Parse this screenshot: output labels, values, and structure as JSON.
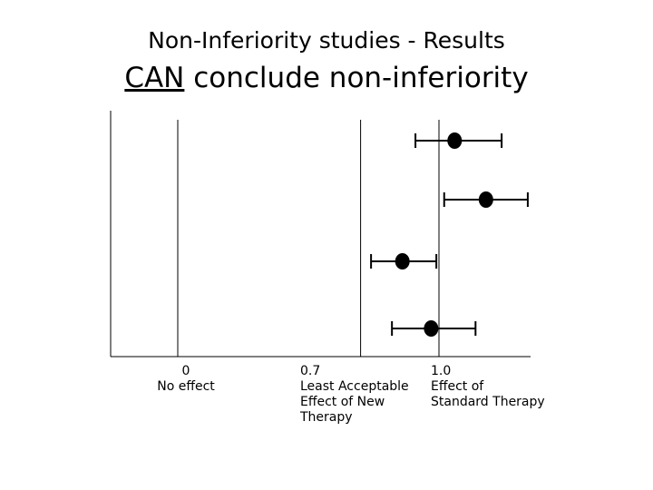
{
  "slide": {
    "title": "Non-Inferiority studies - Results",
    "subtitle_emph": "CAN",
    "subtitle_rest": " conclude non-inferiority"
  },
  "chart_data": {
    "type": "forest",
    "reference_lines": [
      {
        "value": 0.0,
        "label_value": "0",
        "label_lines": [
          "No effect"
        ]
      },
      {
        "value": 0.7,
        "label_value": "0.7",
        "label_lines": [
          "Least Acceptable",
          "Effect of New",
          "Therapy"
        ]
      },
      {
        "value": 1.0,
        "label_value": "1.0",
        "label_lines": [
          "Effect of",
          "Standard  Therapy"
        ]
      }
    ],
    "estimates": [
      {
        "point": 1.06,
        "lower": 0.91,
        "upper": 1.24
      },
      {
        "point": 1.18,
        "lower": 1.02,
        "upper": 1.34
      },
      {
        "point": 0.86,
        "lower": 0.74,
        "upper": 0.99
      },
      {
        "point": 0.97,
        "lower": 0.82,
        "upper": 1.14
      }
    ]
  }
}
